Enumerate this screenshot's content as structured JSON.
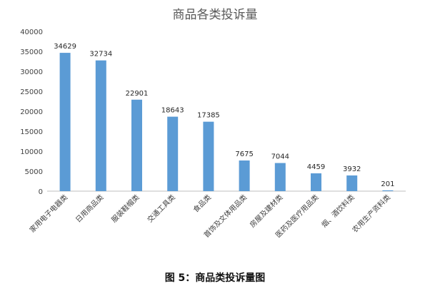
{
  "chart_data": {
    "type": "bar",
    "title": "商品各类投诉量",
    "categories": [
      "家用电子电器类",
      "日用商品类",
      "服装鞋帽类",
      "交通工具类",
      "食品类",
      "首饰及文体用品类",
      "房屋及建材类",
      "医药及医疗用品类",
      "烟、酒饮料类",
      "农用生产资料类"
    ],
    "values": [
      34629,
      32734,
      22901,
      18643,
      17385,
      7675,
      7044,
      4459,
      3932,
      201
    ],
    "yticks": [
      "0",
      "5000",
      "10000",
      "15000",
      "20000",
      "25000",
      "30000",
      "35000",
      "40000"
    ],
    "ylim": [
      0,
      40000
    ],
    "xlabel": "",
    "ylabel": "",
    "grid": false,
    "legend": "none",
    "bar_color": "#5B9BD5"
  },
  "caption": "图 5：商品类投诉量图"
}
